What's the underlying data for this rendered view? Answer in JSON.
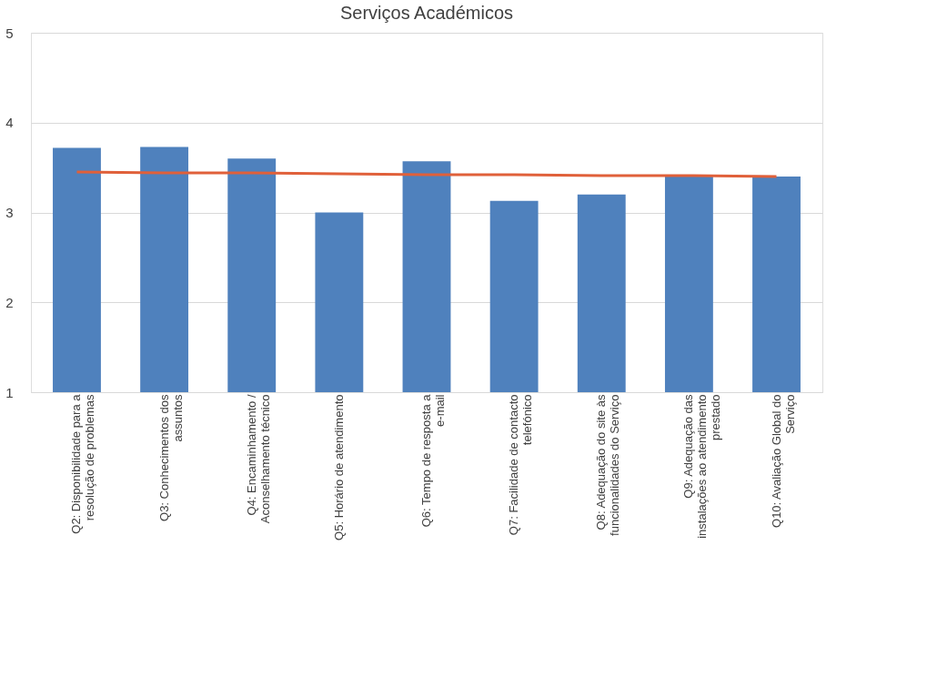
{
  "chart_data": {
    "type": "bar",
    "title": "Serviços Académicos",
    "categories": [
      "Q2: Disponibilidade para a resolução de problemas",
      "Q3: Conhecimentos dos assuntos",
      "Q4: Encaminhamento / Aconselhamento técnico",
      "Q5: Horário de atendimento",
      "Q6: Tempo de resposta a e-mail",
      "Q7: Facilidade de contacto telefónico",
      "Q8: Adequação do site às funcionalidades do Serviço",
      "Q9: Adequação das instalações ao atendimento prestado",
      "Q10: Avaliação Global do Serviço"
    ],
    "series": [
      {
        "color": "#4f81bd",
        "values": [
          3.72,
          3.73,
          3.6,
          3.0,
          3.57,
          3.13,
          3.2,
          3.4,
          3.4
        ]
      },
      {
        "type": "line",
        "color": "#e0603a",
        "values": [
          3.45,
          3.44,
          3.44,
          3.43,
          3.42,
          3.42,
          3.41,
          3.41,
          3.4
        ]
      }
    ],
    "ylim": [
      1,
      5
    ],
    "yticks": [
      1,
      2,
      3,
      4,
      5
    ],
    "grid": "y"
  }
}
